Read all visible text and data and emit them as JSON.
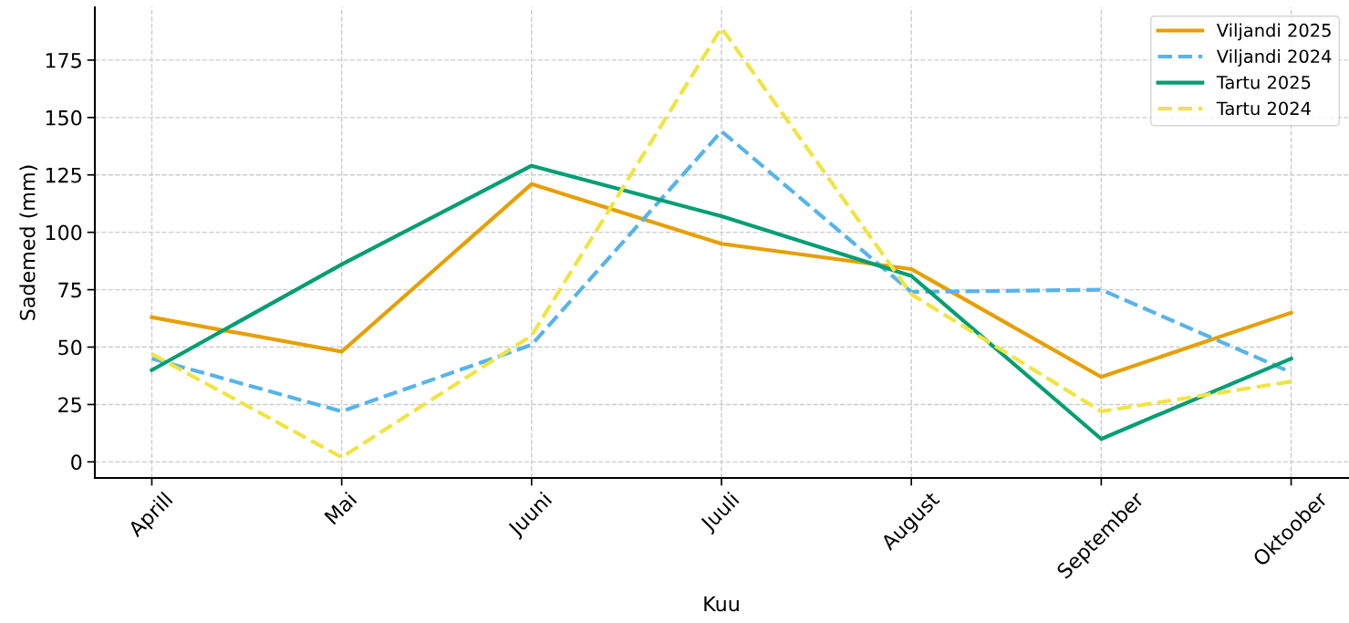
{
  "chart_data": {
    "type": "line",
    "xlabel": "Kuu",
    "ylabel": "Sademed (mm)",
    "categories": [
      "Aprill",
      "Mai",
      "Juuni",
      "Juuli",
      "August",
      "September",
      "Oktoober"
    ],
    "series": [
      {
        "name": "Viljandi 2025",
        "color": "#e69f00",
        "line_style": "solid",
        "values": [
          63,
          48,
          121,
          95,
          84,
          37,
          65
        ]
      },
      {
        "name": "Viljandi 2024",
        "color": "#56b4e9",
        "line_style": "dashed",
        "values": [
          45,
          22,
          51,
          144,
          74,
          75,
          39
        ]
      },
      {
        "name": "Tartu 2025",
        "color": "#009e73",
        "line_style": "solid",
        "values": [
          40,
          86,
          129,
          107,
          81,
          10,
          45
        ]
      },
      {
        "name": "Tartu 2024",
        "color": "#f0e442",
        "line_style": "dashed",
        "values": [
          47,
          2,
          55,
          189,
          73,
          22,
          35
        ]
      }
    ],
    "ylim": [
      -7,
      198
    ],
    "yticks": [
      0,
      25,
      50,
      75,
      100,
      125,
      150,
      175
    ],
    "grid": true,
    "legend": "top right",
    "marker": "none"
  }
}
